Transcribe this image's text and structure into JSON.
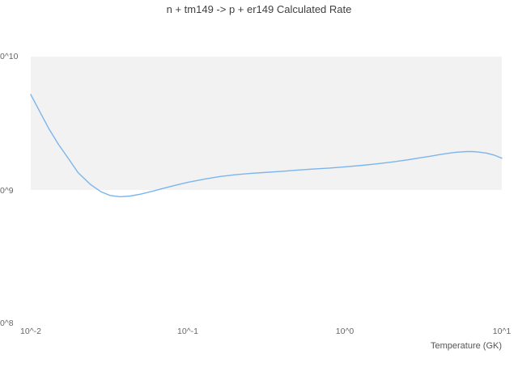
{
  "chart": {
    "title": "n + tm149 -> p + er149 Calculated Rate",
    "x_axis_title": "Temperature (GK)"
  },
  "chart_data": {
    "type": "line",
    "title": "n + tm149 -> p + er149 Calculated Rate",
    "xlabel": "Temperature (GK)",
    "ylabel": "",
    "x_scale": "log",
    "y_scale": "log",
    "xlim": [
      0.01,
      10
    ],
    "ylim": [
      100000000.0,
      10000000000.0
    ],
    "grid": "off",
    "legend": "none",
    "x_ticks": {
      "values": [
        0.01,
        0.1,
        1,
        10
      ],
      "labels": [
        "10^-2",
        "10^-1",
        "10^0",
        "10^1"
      ]
    },
    "y_ticks": {
      "values": [
        100000000.0,
        1000000000.0,
        10000000000.0
      ],
      "labels": [
        "0^8",
        "0^9",
        "0^10"
      ]
    },
    "plot_bands": [
      {
        "from": 1000000000.0,
        "to": 10000000000.0,
        "color": "#f2f2f2"
      }
    ],
    "series": [
      {
        "name": "Calculated Rate",
        "color": "#7cb5ec",
        "points": [
          [
            0.01,
            5200000000.0
          ],
          [
            0.0115,
            3800000000.0
          ],
          [
            0.013,
            2900000000.0
          ],
          [
            0.015,
            2200000000.0
          ],
          [
            0.0175,
            1700000000.0
          ],
          [
            0.02,
            1350000000.0
          ],
          [
            0.024,
            1100000000.0
          ],
          [
            0.028,
            970000000.0
          ],
          [
            0.032,
            910000000.0
          ],
          [
            0.037,
            890000000.0
          ],
          [
            0.043,
            900000000.0
          ],
          [
            0.05,
            930000000.0
          ],
          [
            0.06,
            980000000.0
          ],
          [
            0.07,
            1030000000.0
          ],
          [
            0.085,
            1090000000.0
          ],
          [
            0.1,
            1140000000.0
          ],
          [
            0.13,
            1210000000.0
          ],
          [
            0.16,
            1260000000.0
          ],
          [
            0.2,
            1300000000.0
          ],
          [
            0.25,
            1330000000.0
          ],
          [
            0.3,
            1350000000.0
          ],
          [
            0.4,
            1380000000.0
          ],
          [
            0.5,
            1410000000.0
          ],
          [
            0.65,
            1440000000.0
          ],
          [
            0.8,
            1460000000.0
          ],
          [
            1.0,
            1490000000.0
          ],
          [
            1.3,
            1530000000.0
          ],
          [
            1.6,
            1570000000.0
          ],
          [
            2.0,
            1620000000.0
          ],
          [
            2.5,
            1680000000.0
          ],
          [
            3.0,
            1740000000.0
          ],
          [
            3.5,
            1790000000.0
          ],
          [
            4.0,
            1840000000.0
          ],
          [
            4.5,
            1880000000.0
          ],
          [
            5.0,
            1910000000.0
          ],
          [
            5.5,
            1930000000.0
          ],
          [
            6.0,
            1940000000.0
          ],
          [
            6.5,
            1940000000.0
          ],
          [
            7.0,
            1930000000.0
          ],
          [
            8.0,
            1890000000.0
          ],
          [
            9.0,
            1820000000.0
          ],
          [
            10.0,
            1730000000.0
          ]
        ]
      }
    ]
  }
}
